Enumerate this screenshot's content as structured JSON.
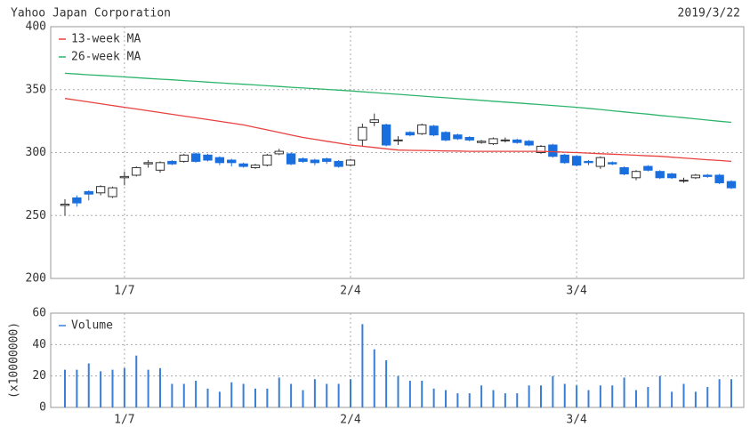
{
  "chart_data": [
    {
      "type": "candlestick",
      "title": "Yahoo Japan Corporation",
      "date": "2019/3/22",
      "categories": [
        null,
        null,
        null,
        null,
        null,
        "1/7",
        null,
        null,
        null,
        null,
        null,
        null,
        null,
        null,
        null,
        null,
        null,
        null,
        null,
        null,
        null,
        null,
        null,
        null,
        "2/4",
        null,
        null,
        null,
        null,
        null,
        null,
        null,
        null,
        null,
        null,
        null,
        null,
        null,
        null,
        null,
        null,
        null,
        null,
        "3/4",
        null,
        null,
        null,
        null,
        null,
        null,
        null,
        null,
        null,
        null,
        null,
        null,
        null
      ],
      "open": [
        258,
        264,
        269,
        268,
        265,
        280,
        282,
        291,
        286,
        293,
        293,
        299,
        298,
        296,
        294,
        291,
        288,
        290,
        299,
        299,
        295,
        294,
        295,
        293,
        290,
        310,
        324,
        322,
        310,
        316,
        315,
        321,
        316,
        314,
        312,
        308,
        307,
        310,
        310,
        309,
        300,
        306,
        298,
        297,
        293,
        289,
        292,
        288,
        280,
        289,
        285,
        283,
        278,
        280,
        282,
        282,
        277
      ],
      "high": [
        263,
        266,
        270,
        274,
        273,
        285,
        289,
        294,
        293,
        294,
        299,
        300,
        299,
        297,
        295,
        292,
        291,
        299,
        303,
        300,
        296,
        295,
        296,
        294,
        295,
        323,
        331,
        323,
        313,
        317,
        323,
        322,
        317,
        315,
        313,
        310,
        312,
        312,
        311,
        310,
        306,
        307,
        299,
        298,
        294,
        297,
        293,
        289,
        286,
        290,
        286,
        284,
        280,
        283,
        283,
        283,
        278
      ],
      "low": [
        250,
        257,
        262,
        266,
        264,
        274,
        281,
        288,
        284,
        290,
        292,
        292,
        293,
        290,
        289,
        288,
        287,
        289,
        298,
        290,
        292,
        290,
        291,
        288,
        289,
        305,
        321,
        305,
        306,
        313,
        314,
        313,
        309,
        310,
        309,
        307,
        306,
        308,
        307,
        305,
        299,
        296,
        291,
        289,
        290,
        287,
        290,
        282,
        278,
        285,
        279,
        279,
        276,
        279,
        280,
        275,
        271
      ],
      "close": [
        259,
        260,
        267,
        273,
        272,
        281,
        288,
        292,
        292,
        291,
        298,
        293,
        294,
        292,
        292,
        289,
        290,
        298,
        301,
        291,
        293,
        292,
        293,
        289,
        294,
        320,
        326,
        306,
        310,
        314,
        322,
        314,
        310,
        311,
        310,
        309,
        311,
        310,
        308,
        306,
        305,
        297,
        292,
        290,
        292,
        296,
        291,
        283,
        285,
        286,
        280,
        280,
        278,
        282,
        281,
        276,
        272
      ],
      "up_color": "#ffffff",
      "down_color": "#1a6fdf",
      "wick_color": "#333333",
      "series": [
        {
          "name": "13-week MA",
          "color": "#e8413f",
          "values": [
            343,
            341.6,
            340.2,
            338.8,
            337.4,
            336,
            334.6,
            333.2,
            331.8,
            330.4,
            329,
            327.6,
            326.2,
            324.8,
            323.4,
            322,
            320,
            318,
            316,
            314,
            312,
            310.5,
            309,
            307.5,
            306,
            305,
            304,
            303,
            302,
            301.8,
            301.7,
            301.5,
            301.3,
            301.2,
            301,
            301,
            301,
            301,
            301,
            301,
            301,
            300.7,
            300.3,
            300,
            299.6,
            299.1,
            298.7,
            298.3,
            297.9,
            297.4,
            297,
            296.3,
            295.7,
            295,
            294.3,
            293.7,
            293
          ]
        },
        {
          "name": "26-week MA",
          "color": "#2db56b",
          "values": [
            363,
            362.4,
            361.8,
            361.3,
            360.7,
            360.1,
            359.5,
            358.9,
            358.3,
            357.8,
            357.2,
            356.6,
            356,
            355.4,
            354.8,
            354.3,
            353.7,
            353.1,
            352.5,
            351.9,
            351.3,
            350.8,
            350.2,
            349.6,
            349,
            348.3,
            347.6,
            346.9,
            346.3,
            345.6,
            344.9,
            344.2,
            343.5,
            342.8,
            342.2,
            341.5,
            340.8,
            340.1,
            339.4,
            338.7,
            338.1,
            337.4,
            336.7,
            336,
            335.1,
            334.2,
            333.2,
            332.3,
            331.4,
            330.5,
            329.5,
            328.6,
            327.7,
            326.8,
            325.8,
            324.9,
            324
          ]
        }
      ],
      "ylim": [
        200,
        400
      ],
      "yticks": [
        200,
        250,
        300,
        350,
        400
      ],
      "grid": true
    },
    {
      "type": "bar",
      "ylabel": "(x10000000)",
      "categories": [
        null,
        null,
        null,
        null,
        null,
        "1/7",
        null,
        null,
        null,
        null,
        null,
        null,
        null,
        null,
        null,
        null,
        null,
        null,
        null,
        null,
        null,
        null,
        null,
        null,
        "2/4",
        null,
        null,
        null,
        null,
        null,
        null,
        null,
        null,
        null,
        null,
        null,
        null,
        null,
        null,
        null,
        null,
        null,
        null,
        "3/4",
        null,
        null,
        null,
        null,
        null,
        null,
        null,
        null,
        null,
        null,
        null,
        null,
        null
      ],
      "series": [
        {
          "name": "Volume",
          "color": "#3a7fd6",
          "values": [
            24,
            24,
            28,
            23,
            24,
            25,
            33,
            24,
            25,
            15,
            15,
            17,
            12,
            10,
            16,
            15,
            12,
            12,
            19,
            15,
            11,
            18,
            15,
            15,
            18,
            53,
            37,
            30,
            20,
            17,
            17,
            12,
            11,
            9,
            9,
            14,
            11,
            9,
            9,
            14,
            14,
            20,
            15,
            14,
            11,
            14,
            14,
            19,
            11,
            13,
            20,
            10,
            15,
            10,
            13,
            18,
            18
          ]
        }
      ],
      "ylim": [
        0,
        60
      ],
      "yticks": [
        0,
        20,
        40,
        60
      ],
      "grid": true
    }
  ]
}
